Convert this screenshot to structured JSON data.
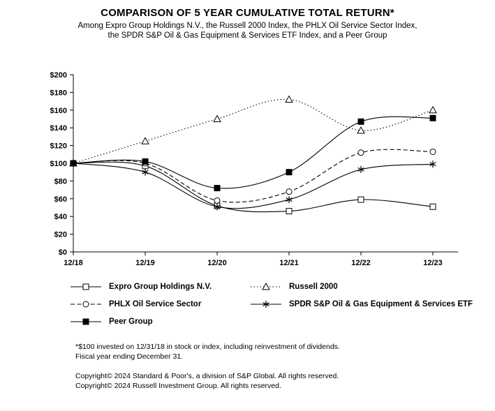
{
  "title": "COMPARISON OF 5 YEAR CUMULATIVE TOTAL RETURN*",
  "subtitle_line1": "Among Expro Group Holdings N.V., the Russell 2000 Index, the PHLX Oil Service Sector Index,",
  "subtitle_line2": "the SPDR S&P Oil & Gas Equipment & Services ETF Index, and a Peer Group",
  "chart_data": {
    "type": "line",
    "x": [
      "12/18",
      "12/19",
      "12/20",
      "12/21",
      "12/22",
      "12/23"
    ],
    "series": [
      {
        "name": "Expro Group Holdings N.V.",
        "values": [
          100,
          97,
          52,
          46,
          59,
          51
        ],
        "line": "solid",
        "marker": "open-square"
      },
      {
        "name": "Russell 2000",
        "values": [
          100,
          125,
          150,
          172,
          137,
          160
        ],
        "line": "dotted",
        "marker": "open-triangle"
      },
      {
        "name": "PHLX Oil Service Sector",
        "values": [
          100,
          100,
          58,
          68,
          112,
          113
        ],
        "line": "dashed",
        "marker": "open-circle"
      },
      {
        "name": "SPDR S&P Oil & Gas Equipment & Services ETF",
        "values": [
          100,
          90,
          51,
          59,
          93,
          99
        ],
        "line": "solid",
        "marker": "asterisk"
      },
      {
        "name": "Peer Group",
        "values": [
          100,
          102,
          72,
          90,
          147,
          151
        ],
        "line": "solid",
        "marker": "filled-square"
      }
    ],
    "ylim": [
      0,
      200
    ],
    "ytick_step": 20,
    "ytick_labels": [
      "$0",
      "$20",
      "$40",
      "$60",
      "$80",
      "$100",
      "$120",
      "$140",
      "$160",
      "$180",
      "$200"
    ],
    "grid": false,
    "legend_position": "below",
    "line_color": "#000000"
  },
  "footnotes": {
    "line1": "*$100 invested on 12/31/18 in stock or index, including reinvestment of dividends.",
    "line2": "Fiscal year ending December 31.",
    "line3": "Copyright© 2024 Standard & Poor's, a division of S&P Global. All rights reserved.",
    "line4": "Copyright© 2024 Russell Investment Group. All rights reserved."
  }
}
